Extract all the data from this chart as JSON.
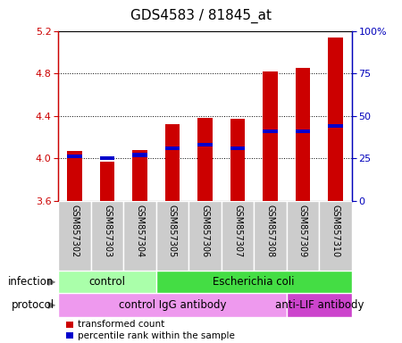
{
  "title": "GDS4583 / 81845_at",
  "samples": [
    "GSM857302",
    "GSM857303",
    "GSM857304",
    "GSM857305",
    "GSM857306",
    "GSM857307",
    "GSM857308",
    "GSM857309",
    "GSM857310"
  ],
  "transformed_count": [
    4.07,
    3.97,
    4.08,
    4.32,
    4.38,
    4.37,
    4.82,
    4.85,
    5.14
  ],
  "percentile_rank": [
    27,
    26,
    28,
    32,
    34,
    32,
    42,
    42,
    45
  ],
  "ylim_left": [
    3.6,
    5.2
  ],
  "yticks_left": [
    3.6,
    4.0,
    4.4,
    4.8,
    5.2
  ],
  "ylim_right": [
    0,
    100
  ],
  "yticks_right": [
    0,
    25,
    50,
    75,
    100
  ],
  "bar_color": "#cc0000",
  "percentile_color": "#0000cc",
  "bar_bottom": 3.6,
  "infection_labels": [
    {
      "text": "control",
      "start": 0,
      "end": 3,
      "color": "#aaffaa"
    },
    {
      "text": "Escherichia coli",
      "start": 3,
      "end": 9,
      "color": "#44dd44"
    }
  ],
  "protocol_labels": [
    {
      "text": "control IgG antibody",
      "start": 0,
      "end": 7,
      "color": "#ee99ee"
    },
    {
      "text": "anti-LIF antibody",
      "start": 7,
      "end": 9,
      "color": "#cc44cc"
    }
  ],
  "infection_row_label": "infection",
  "protocol_row_label": "protocol",
  "legend_items": [
    {
      "color": "#cc0000",
      "label": "transformed count"
    },
    {
      "color": "#0000cc",
      "label": "percentile rank within the sample"
    }
  ],
  "bg_color": "#cccccc",
  "left_axis_color": "#cc0000",
  "right_axis_color": "#0000bb",
  "title_fontsize": 11
}
